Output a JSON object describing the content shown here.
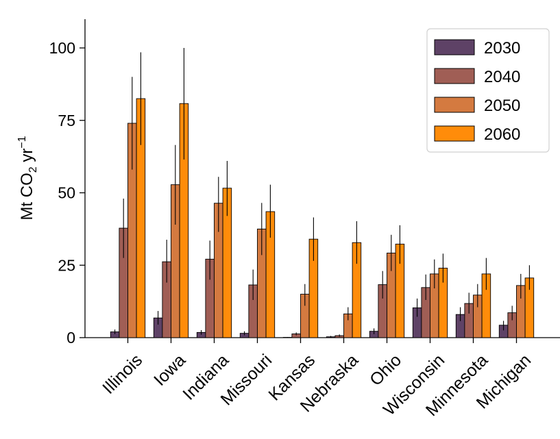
{
  "chart_data": {
    "type": "bar",
    "title": "",
    "xlabel": "",
    "ylabel": {
      "main": "Mt CO",
      "sub": "2",
      "mid": " yr",
      "sup": "−1"
    },
    "ylim": [
      0,
      110
    ],
    "yticks": [
      0,
      25,
      50,
      75,
      100
    ],
    "categories": [
      "Illinois",
      "Iowa",
      "Indiana",
      "Missouri",
      "Kansas",
      "Nebraska",
      "Ohio",
      "Wisconsin",
      "Minnesota",
      "Michigan"
    ],
    "series": [
      {
        "name": "2030",
        "color": "#5e4266",
        "values": [
          2.0,
          6.8,
          1.8,
          1.5,
          0.1,
          0.3,
          2.2,
          10.3,
          8.0,
          4.3
        ],
        "err_low": [
          1.2,
          4.5,
          1.0,
          0.8,
          0.0,
          0.0,
          1.2,
          7.2,
          5.7,
          2.5
        ],
        "err_high": [
          2.8,
          9.2,
          2.6,
          2.2,
          0.2,
          0.6,
          3.2,
          13.5,
          10.5,
          5.8
        ]
      },
      {
        "name": "2040",
        "color": "#a05e55",
        "values": [
          37.8,
          26.2,
          27.1,
          18.2,
          1.3,
          0.7,
          18.3,
          17.3,
          11.8,
          8.6
        ],
        "err_low": [
          27.5,
          19.0,
          20.0,
          13.0,
          0.8,
          0.3,
          13.5,
          13.0,
          8.3,
          6.0
        ],
        "err_high": [
          48.0,
          33.8,
          33.5,
          23.5,
          1.8,
          1.1,
          23.0,
          21.8,
          15.5,
          11.0
        ]
      },
      {
        "name": "2050",
        "color": "#d47a40",
        "values": [
          74.0,
          52.8,
          46.4,
          37.5,
          15.0,
          8.2,
          29.2,
          22.0,
          14.7,
          18.0
        ],
        "err_low": [
          58.0,
          39.0,
          36.5,
          28.5,
          11.0,
          6.0,
          23.0,
          17.0,
          10.5,
          13.5
        ],
        "err_high": [
          90.0,
          66.5,
          55.5,
          46.5,
          18.5,
          10.5,
          35.5,
          27.0,
          18.5,
          22.0
        ]
      },
      {
        "name": "2060",
        "color": "#ff8c0a",
        "values": [
          82.5,
          80.8,
          51.6,
          43.5,
          34.0,
          32.8,
          32.3,
          24.0,
          22.0,
          20.6
        ],
        "err_low": [
          66.5,
          61.5,
          42.0,
          34.5,
          26.5,
          25.5,
          25.5,
          19.0,
          16.5,
          16.5
        ],
        "err_high": [
          98.5,
          100.0,
          61.0,
          52.8,
          41.5,
          40.2,
          38.8,
          29.0,
          27.5,
          25.0
        ]
      }
    ],
    "legend": {
      "position": "top-right"
    },
    "grid": false
  }
}
